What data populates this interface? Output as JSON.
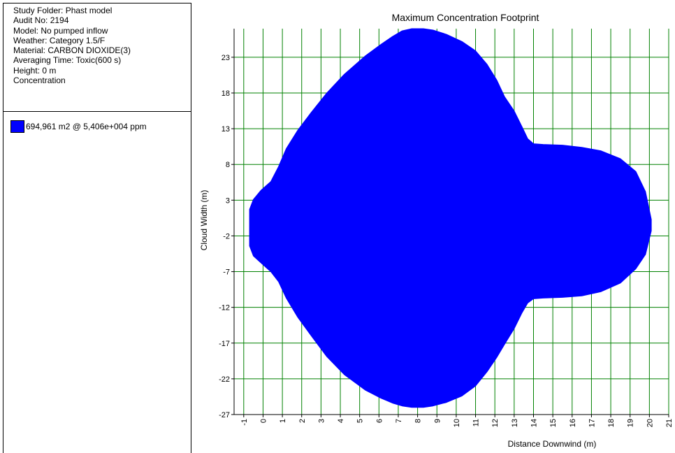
{
  "info_panel": {
    "lines": [
      "Study Folder: Phast model",
      "Audit No: 2194",
      "Model: No pumped inflow",
      "Weather: Category 1.5/F",
      "Material: CARBON DIOXIDE(3)",
      "Averaging Time: Toxic(600 s)",
      "Height: 0 m",
      "Concentration"
    ]
  },
  "legend": {
    "entries": [
      {
        "label": "694,961 m2 @ 5,406e+004 ppm",
        "color": "#0000ff"
      }
    ]
  },
  "colors": {
    "grid": "#008000",
    "footprint": "#0000ff",
    "axis": "#000000"
  },
  "chart_data": {
    "type": "area",
    "title": "Maximum Concentration Footprint",
    "xlabel": "Distance Downwind (m)",
    "ylabel": "Cloud Width (m)",
    "xlim": [
      -1.5,
      21
    ],
    "ylim": [
      -27,
      27
    ],
    "grid": true,
    "x_ticks": [
      -1,
      0,
      1,
      2,
      3,
      4,
      5,
      6,
      7,
      8,
      9,
      10,
      11,
      12,
      13,
      14,
      15,
      16,
      17,
      18,
      19,
      20,
      21
    ],
    "y_ticks": [
      23,
      18,
      13,
      8,
      3,
      -2,
      -7,
      -12,
      -17,
      -22,
      -27
    ],
    "series": [
      {
        "name": "694,961 m2 @ 5,406e+004 ppm",
        "color": "#0000ff",
        "upper_outline": [
          [
            -0.7,
            -0.9
          ],
          [
            -0.7,
            1.7
          ],
          [
            -0.5,
            3.1
          ],
          [
            -0.1,
            4.4
          ],
          [
            0.4,
            5.6
          ],
          [
            0.8,
            7.7
          ],
          [
            1.2,
            10.2
          ],
          [
            1.8,
            12.8
          ],
          [
            2.5,
            15.3
          ],
          [
            3.3,
            18.0
          ],
          [
            4.2,
            20.6
          ],
          [
            5.3,
            23.2
          ],
          [
            6.1,
            24.8
          ],
          [
            6.7,
            25.9
          ],
          [
            7.2,
            26.7
          ],
          [
            7.7,
            27.0
          ],
          [
            8.3,
            27.0
          ],
          [
            8.8,
            26.8
          ],
          [
            9.5,
            26.2
          ],
          [
            10.3,
            25.2
          ],
          [
            11.0,
            23.9
          ],
          [
            11.6,
            22.0
          ],
          [
            12.1,
            19.8
          ],
          [
            12.5,
            17.5
          ],
          [
            13.0,
            15.5
          ],
          [
            13.4,
            13.3
          ],
          [
            13.7,
            11.6
          ],
          [
            14.0,
            10.9
          ],
          [
            14.5,
            10.8
          ],
          [
            15.5,
            10.7
          ],
          [
            16.5,
            10.4
          ],
          [
            17.5,
            9.9
          ],
          [
            18.5,
            8.8
          ],
          [
            19.3,
            7.0
          ],
          [
            19.8,
            4.2
          ],
          [
            20.1,
            0.3
          ]
        ],
        "lower_outline": [
          [
            20.1,
            -1.3
          ],
          [
            19.8,
            -4.6
          ],
          [
            19.3,
            -6.6
          ],
          [
            18.5,
            -8.6
          ],
          [
            17.5,
            -9.8
          ],
          [
            16.5,
            -10.4
          ],
          [
            15.5,
            -10.6
          ],
          [
            14.5,
            -10.7
          ],
          [
            14.0,
            -10.8
          ],
          [
            13.7,
            -11.4
          ],
          [
            13.4,
            -12.8
          ],
          [
            13.0,
            -15.0
          ],
          [
            12.5,
            -17.2
          ],
          [
            12.1,
            -19.0
          ],
          [
            11.6,
            -21.0
          ],
          [
            11.0,
            -23.0
          ],
          [
            10.3,
            -24.4
          ],
          [
            9.5,
            -25.3
          ],
          [
            8.8,
            -25.8
          ],
          [
            8.3,
            -26.0
          ],
          [
            7.7,
            -26.0
          ],
          [
            7.2,
            -25.8
          ],
          [
            6.7,
            -25.4
          ],
          [
            6.1,
            -24.7
          ],
          [
            5.3,
            -23.6
          ],
          [
            4.2,
            -21.4
          ],
          [
            3.3,
            -18.9
          ],
          [
            2.5,
            -16.0
          ],
          [
            1.8,
            -13.4
          ],
          [
            1.2,
            -10.7
          ],
          [
            0.8,
            -8.4
          ],
          [
            0.4,
            -7.0
          ],
          [
            -0.1,
            -5.8
          ],
          [
            -0.5,
            -4.8
          ],
          [
            -0.7,
            -3.4
          ]
        ]
      }
    ]
  }
}
